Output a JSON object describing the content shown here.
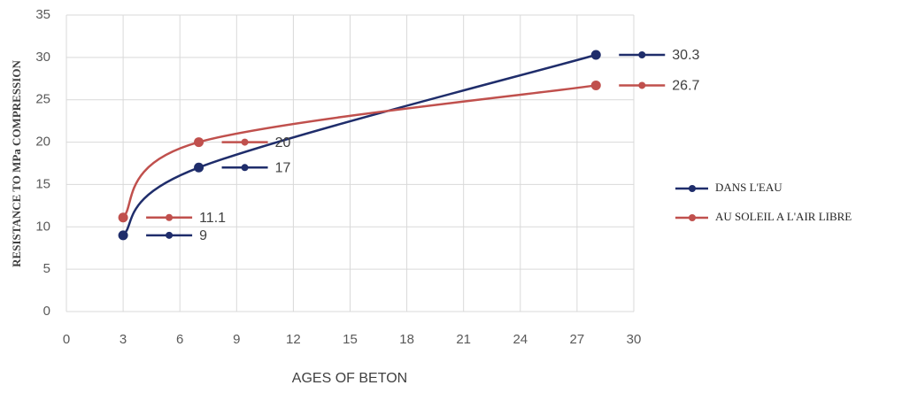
{
  "chart_data": {
    "type": "line",
    "x_label": "AGES OF BETON",
    "y_label": "RESISTANCE TO MPa COMPRESSION",
    "x": [
      3,
      7,
      28
    ],
    "series": [
      {
        "name": "DANS L'EAU",
        "color": "#1f2d6b",
        "values": [
          9,
          17,
          30.3
        ]
      },
      {
        "name": "AU SOLEIL  A L'AIR LIBRE",
        "color": "#c0504d",
        "values": [
          11.1,
          20,
          26.7
        ]
      }
    ],
    "xlim": [
      0,
      30
    ],
    "xticks": [
      0,
      3,
      6,
      9,
      12,
      15,
      18,
      21,
      24,
      27,
      30
    ],
    "ylim": [
      0,
      35
    ],
    "yticks": [
      0,
      5,
      10,
      15,
      20,
      25,
      30,
      35
    ],
    "grid": true,
    "legend": "right"
  }
}
